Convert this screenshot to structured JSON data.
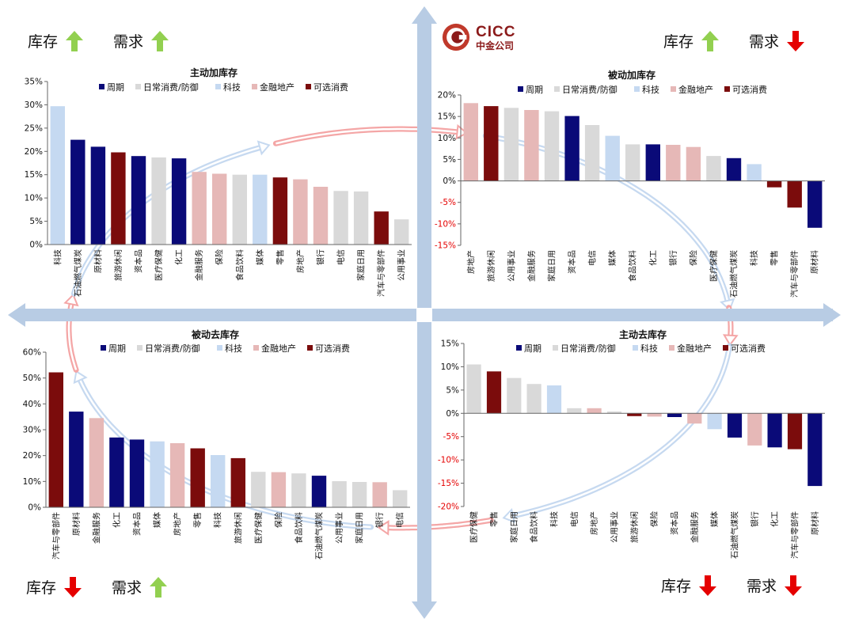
{
  "logo": {
    "en": "CICC",
    "cn": "中金公司"
  },
  "quadrant_labels": [
    {
      "inventory_label": "库存",
      "inventory_dir": "up",
      "demand_label": "需求",
      "demand_dir": "up"
    },
    {
      "inventory_label": "库存",
      "inventory_dir": "up",
      "demand_label": "需求",
      "demand_dir": "down"
    },
    {
      "inventory_label": "库存",
      "inventory_dir": "down",
      "demand_label": "需求",
      "demand_dir": "up"
    },
    {
      "inventory_label": "库存",
      "inventory_dir": "down",
      "demand_label": "需求",
      "demand_dir": "down"
    }
  ],
  "legend": [
    {
      "name": "周期",
      "color": "#0A0A78"
    },
    {
      "name": "日常消费/防御",
      "color": "#D9D9D9"
    },
    {
      "name": "科技",
      "color": "#C5D9F1"
    },
    {
      "name": "金融地产",
      "color": "#E6B8B7"
    },
    {
      "name": "可选消费",
      "color": "#7B0C0C"
    }
  ],
  "colors": {
    "up": "#92D050",
    "down": "#E50000",
    "axis_arrow": "#B8CCE4",
    "cycle_blue": "#C6D9F0",
    "cycle_red": "#F4A6A6"
  },
  "chart_data": [
    {
      "type": "bar",
      "title": "主动加库存",
      "ylim": [
        0,
        0.35
      ],
      "yticks": [
        0,
        0.05,
        0.1,
        0.15,
        0.2,
        0.25,
        0.3,
        0.35
      ],
      "ytick_labels": [
        "0%",
        "5%",
        "10%",
        "15%",
        "20%",
        "25%",
        "30%",
        "35%"
      ],
      "categories": [
        "科技",
        "石油燃气煤炭",
        "原材料",
        "旅游休闲",
        "资本品",
        "医疗保健",
        "化工",
        "金融服务",
        "保险",
        "食品饮料",
        "媒体",
        "零售",
        "房地产",
        "银行",
        "电信",
        "家庭日用",
        "汽车与零部件",
        "公用事业"
      ],
      "groups": [
        "科技",
        "周期",
        "周期",
        "可选消费",
        "周期",
        "日常消费/防御",
        "周期",
        "金融地产",
        "金融地产",
        "日常消费/防御",
        "科技",
        "可选消费",
        "金融地产",
        "金融地产",
        "日常消费/防御",
        "日常消费/防御",
        "可选消费",
        "日常消费/防御"
      ],
      "values": [
        0.297,
        0.225,
        0.21,
        0.198,
        0.19,
        0.187,
        0.185,
        0.156,
        0.152,
        0.15,
        0.15,
        0.144,
        0.14,
        0.124,
        0.115,
        0.114,
        0.071,
        0.054
      ]
    },
    {
      "type": "bar",
      "title": "被动加库存",
      "ylim": [
        -0.15,
        0.2
      ],
      "yticks": [
        -0.15,
        -0.1,
        -0.05,
        0,
        0.05,
        0.1,
        0.15,
        0.2
      ],
      "ytick_labels": [
        "-15%",
        "-10%",
        "-5%",
        "0%",
        "5%",
        "10%",
        "15%",
        "20%"
      ],
      "categories": [
        "房地产",
        "旅游休闲",
        "公用事业",
        "金融服务",
        "家庭日用",
        "资本品",
        "电信",
        "媒体",
        "食品饮料",
        "化工",
        "银行",
        "保险",
        "医疗保健",
        "石油燃气煤炭",
        "科技",
        "零售",
        "汽车与零部件",
        "原材料"
      ],
      "groups": [
        "金融地产",
        "可选消费",
        "日常消费/防御",
        "金融地产",
        "日常消费/防御",
        "周期",
        "日常消费/防御",
        "科技",
        "日常消费/防御",
        "周期",
        "金融地产",
        "金融地产",
        "日常消费/防御",
        "周期",
        "科技",
        "可选消费",
        "可选消费",
        "周期"
      ],
      "values": [
        0.181,
        0.174,
        0.17,
        0.165,
        0.162,
        0.151,
        0.13,
        0.105,
        0.085,
        0.085,
        0.084,
        0.079,
        0.058,
        0.053,
        0.039,
        -0.015,
        -0.062,
        -0.109
      ]
    },
    {
      "type": "bar",
      "title": "被动去库存",
      "ylim": [
        0,
        0.6
      ],
      "yticks": [
        0,
        0.1,
        0.2,
        0.3,
        0.4,
        0.5,
        0.6
      ],
      "ytick_labels": [
        "0%",
        "10%",
        "20%",
        "30%",
        "40%",
        "50%",
        "60%"
      ],
      "categories": [
        "汽车与零部件",
        "原材料",
        "金融服务",
        "化工",
        "资本品",
        "媒体",
        "房地产",
        "零售",
        "科技",
        "旅游休闲",
        "医疗保健",
        "保险",
        "食品饮料",
        "石油燃气煤炭",
        "公用事业",
        "家庭日用",
        "银行",
        "电信"
      ],
      "groups": [
        "可选消费",
        "周期",
        "金融地产",
        "周期",
        "周期",
        "科技",
        "金融地产",
        "可选消费",
        "科技",
        "可选消费",
        "日常消费/防御",
        "金融地产",
        "日常消费/防御",
        "周期",
        "日常消费/防御",
        "日常消费/防御",
        "金融地产",
        "日常消费/防御"
      ],
      "values": [
        0.522,
        0.37,
        0.345,
        0.27,
        0.262,
        0.255,
        0.248,
        0.228,
        0.202,
        0.19,
        0.137,
        0.136,
        0.131,
        0.122,
        0.101,
        0.098,
        0.097,
        0.066
      ]
    },
    {
      "type": "bar",
      "title": "主动去库存",
      "ylim": [
        -0.2,
        0.15
      ],
      "yticks": [
        -0.2,
        -0.15,
        -0.1,
        -0.05,
        0,
        0.05,
        0.1,
        0.15
      ],
      "ytick_labels": [
        "-20%",
        "-15%",
        "-10%",
        "-5%",
        "0%",
        "5%",
        "10%",
        "15%"
      ],
      "categories": [
        "医疗保健",
        "零售",
        "家庭日用",
        "食品饮料",
        "科技",
        "电信",
        "房地产",
        "公用事业",
        "旅游休闲",
        "保险",
        "资本品",
        "金融服务",
        "媒体",
        "石油燃气煤炭",
        "银行",
        "化工",
        "汽车与零部件",
        "原材料"
      ],
      "groups": [
        "日常消费/防御",
        "可选消费",
        "日常消费/防御",
        "日常消费/防御",
        "科技",
        "日常消费/防御",
        "金融地产",
        "日常消费/防御",
        "可选消费",
        "金融地产",
        "周期",
        "金融地产",
        "科技",
        "周期",
        "金融地产",
        "周期",
        "可选消费",
        "周期"
      ],
      "values": [
        0.105,
        0.09,
        0.076,
        0.063,
        0.06,
        0.011,
        0.011,
        0.004,
        -0.006,
        -0.007,
        -0.008,
        -0.022,
        -0.034,
        -0.052,
        -0.069,
        -0.073,
        -0.077,
        -0.156
      ]
    }
  ]
}
